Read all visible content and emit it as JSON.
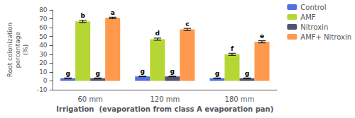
{
  "chart_data": {
    "type": "bar",
    "categories": [
      "60 mm",
      "120 mm",
      "180 mm"
    ],
    "series": [
      {
        "name": "Control",
        "values": [
          3,
          5,
          3
        ],
        "errors": [
          0.3,
          0.3,
          0.3
        ],
        "letters": [
          "g",
          "g",
          "g"
        ]
      },
      {
        "name": "AMF",
        "values": [
          67,
          47,
          30
        ],
        "errors": [
          1.2,
          1.2,
          1.2
        ],
        "letters": [
          "b",
          "d",
          "f"
        ]
      },
      {
        "name": "Nitroxin",
        "values": [
          3,
          5,
          3
        ],
        "errors": [
          0.3,
          0.3,
          0.3
        ],
        "letters": [
          "g",
          "g",
          "g"
        ]
      },
      {
        "name": "AMF+ Nitroxin",
        "values": [
          71,
          58,
          44
        ],
        "errors": [
          0.8,
          1.2,
          1.2
        ],
        "letters": [
          "a",
          "c",
          "e"
        ]
      }
    ],
    "xlabel": "Irrigation  (evaporation from class A evaporation pan)",
    "ylabel": "Root colonization\npercentage\n(%)",
    "ylim": [
      -10,
      80
    ],
    "yticks": [
      -10,
      0,
      10,
      20,
      30,
      40,
      50,
      60,
      70,
      80
    ],
    "grid": false,
    "legend": "upper right"
  }
}
